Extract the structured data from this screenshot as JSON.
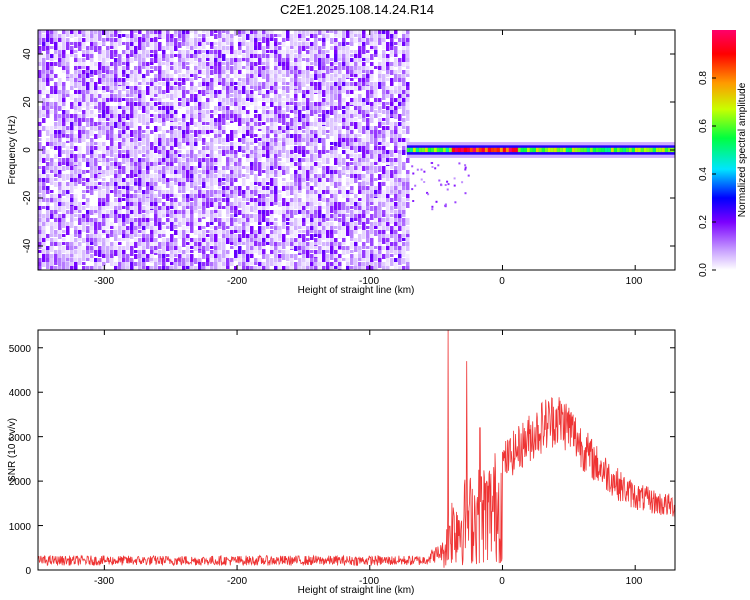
{
  "chart_data": [
    {
      "type": "heatmap",
      "title": "C2E1.2025.108.14.24.R14",
      "xlabel": "Height of straight line (km)",
      "ylabel": "Frequency (Hz)",
      "xlim": [
        -350,
        130
      ],
      "ylim": [
        -50,
        50
      ],
      "x_ticks": [
        "-300",
        "-200",
        "-100",
        "0",
        "100"
      ],
      "y_ticks": [
        "-40",
        "-20",
        "0",
        "20",
        "40"
      ],
      "colorbar": {
        "label": "Normalized spectral amplitude",
        "range": [
          0,
          1
        ],
        "ticks": [
          "0.0",
          "0.2",
          "0.4",
          "0.6",
          "0.8"
        ],
        "colors": [
          "#ffffff",
          "#c9a2ff",
          "#7b00ff",
          "#0000ff",
          "#00e5ff",
          "#00ff40",
          "#c8ff00",
          "#ff9900",
          "#ff0000",
          "#ff006a"
        ]
      },
      "regions": [
        {
          "name": "noise",
          "x_range": [
            -350,
            -72
          ],
          "f_range": [
            -50,
            50
          ],
          "amplitude_range": [
            0.0,
            0.25
          ]
        },
        {
          "name": "carrier",
          "x_range": [
            -72,
            130
          ],
          "f_center": 0,
          "f_width": 3,
          "amplitude_range": [
            0.3,
            1.0
          ]
        }
      ]
    },
    {
      "type": "line",
      "xlabel": "Height of straight line (km)",
      "ylabel": "SNR (10 * v/v)",
      "xlim": [
        -350,
        130
      ],
      "ylim": [
        0,
        5400
      ],
      "x_ticks": [
        "-300",
        "-200",
        "-100",
        "0",
        "100"
      ],
      "y_ticks": [
        "0",
        "1000",
        "2000",
        "3000",
        "4000",
        "5000"
      ],
      "color": "#ee3333",
      "envelope": {
        "x": [
          -350,
          -60,
          -45,
          -40,
          -30,
          -20,
          -10,
          0,
          10,
          20,
          30,
          40,
          50,
          60,
          70,
          80,
          90,
          100,
          110,
          120,
          130
        ],
        "y": [
          250,
          250,
          500,
          1500,
          1800,
          2000,
          2200,
          2600,
          2900,
          3200,
          3500,
          3700,
          3500,
          3000,
          2600,
          2300,
          2000,
          1800,
          1700,
          1600,
          1550
        ]
      },
      "spikes": [
        {
          "x": -41,
          "y": 5400
        },
        {
          "x": -27,
          "y": 4700
        },
        {
          "x": -17,
          "y": 3200
        }
      ]
    }
  ]
}
